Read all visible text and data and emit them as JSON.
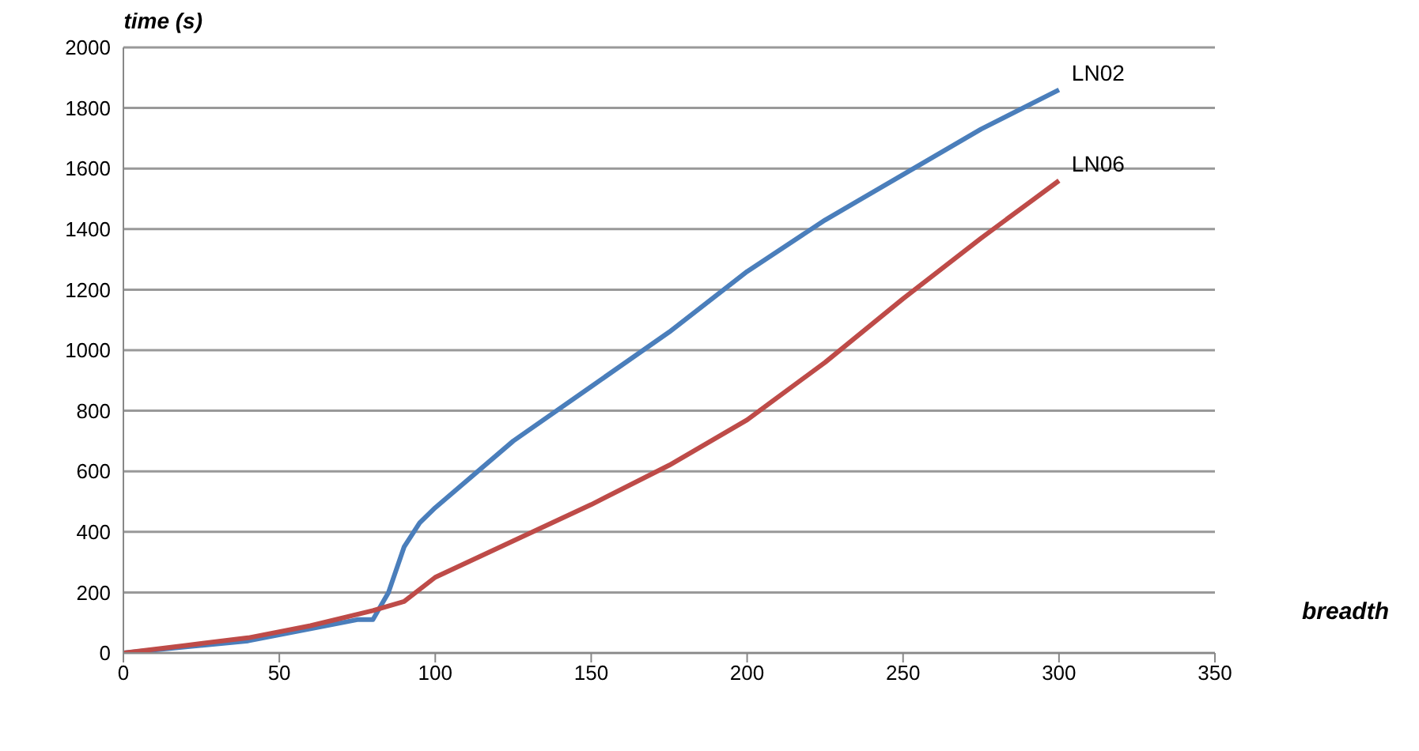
{
  "chart_data": {
    "type": "line",
    "xlabel": "breadth",
    "ylabel": "time (s)",
    "xlim": [
      0,
      350
    ],
    "xticks": [
      0,
      50,
      100,
      150,
      200,
      250,
      300,
      350
    ],
    "ylim": [
      0,
      2000
    ],
    "yticks": [
      0,
      200,
      400,
      600,
      800,
      1000,
      1200,
      1400,
      1600,
      1800,
      2000
    ],
    "grid": "y",
    "legend": false,
    "marker": "none",
    "line_style": "solid",
    "series": [
      {
        "name": "LN02",
        "color": "#4a7ebb",
        "x": [
          0,
          20,
          40,
          60,
          75,
          80,
          85,
          90,
          95,
          100,
          125,
          150,
          175,
          200,
          225,
          250,
          275,
          300
        ],
        "values": [
          0,
          20,
          40,
          80,
          110,
          110,
          200,
          350,
          430,
          480,
          700,
          880,
          1060,
          1260,
          1430,
          1580,
          1730,
          1860
        ]
      },
      {
        "name": "LN06",
        "color": "#be4b48",
        "x": [
          0,
          20,
          40,
          60,
          80,
          90,
          100,
          125,
          150,
          175,
          200,
          225,
          250,
          275,
          300
        ],
        "values": [
          0,
          25,
          50,
          90,
          140,
          170,
          250,
          370,
          490,
          620,
          770,
          960,
          1170,
          1370,
          1560
        ]
      }
    ]
  }
}
